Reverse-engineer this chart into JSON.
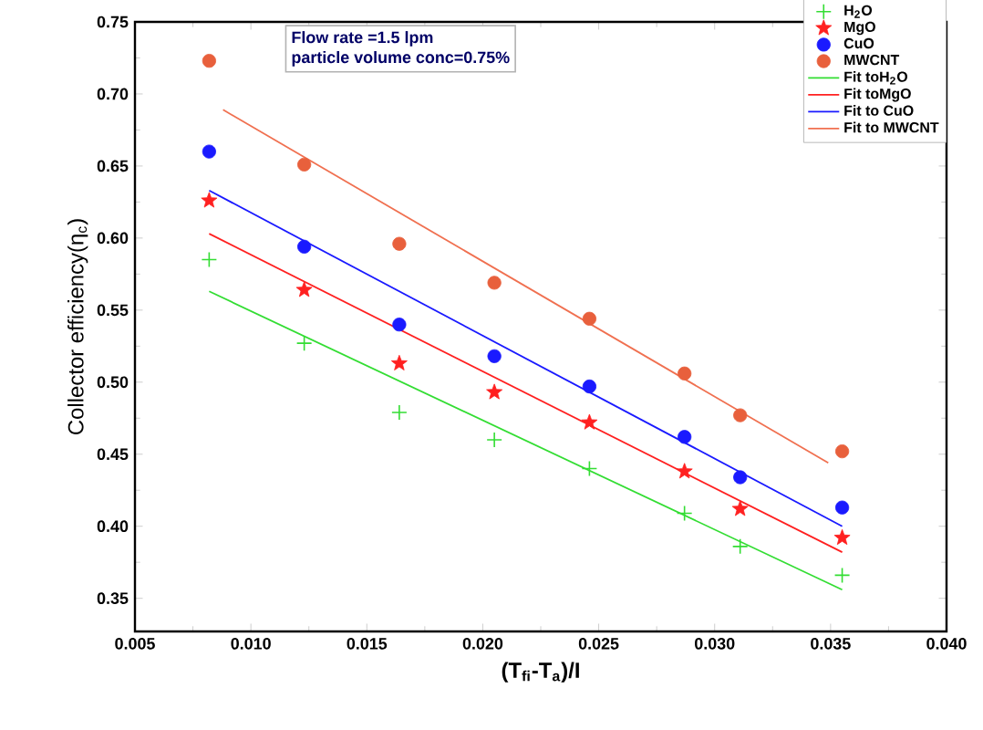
{
  "chart_data": {
    "type": "scatter",
    "xlabel": "(T$_{fi}$-T$_{a}$)/I",
    "ylabel": "Collector efficiency(η$_{c}$)",
    "annotations": [
      "Flow rate =1.5 lpm",
      "particle volume conc=0.75%"
    ],
    "x": [
      0.0082,
      0.0123,
      0.0164,
      0.0205,
      0.0246,
      0.0287,
      0.0311,
      0.0355
    ],
    "series": [
      {
        "name": "H$_{2}$O",
        "color": "#33dd33",
        "marker": "cross",
        "values": [
          0.585,
          0.527,
          0.479,
          0.46,
          0.44,
          0.409,
          0.386,
          0.366
        ]
      },
      {
        "name": "MgO",
        "color": "#ff2020",
        "marker": "star",
        "values": [
          0.626,
          0.564,
          0.513,
          0.493,
          0.472,
          0.438,
          0.412,
          0.392
        ]
      },
      {
        "name": "CuO",
        "color": "#1a1aff",
        "marker": "circle",
        "values": [
          0.66,
          0.594,
          0.54,
          0.518,
          0.497,
          0.462,
          0.434,
          0.413
        ]
      },
      {
        "name": "MWCNT",
        "color": "#e8603c",
        "marker": "circle",
        "values": [
          0.723,
          0.651,
          0.596,
          0.569,
          0.544,
          0.506,
          0.477,
          0.452
        ]
      },
      {
        "name": "Fit toH$_{2}$O",
        "type": "line",
        "color": "#33dd33",
        "marker": "none",
        "x": [
          0.0082,
          0.0355
        ],
        "values": [
          0.563,
          0.356
        ]
      },
      {
        "name": "Fit toMgO",
        "type": "line",
        "color": "#ff2020",
        "marker": "none",
        "x": [
          0.0082,
          0.0355
        ],
        "values": [
          0.603,
          0.382
        ]
      },
      {
        "name": "Fit to CuO",
        "type": "line",
        "color": "#1a1aff",
        "marker": "none",
        "x": [
          0.0082,
          0.0355
        ],
        "values": [
          0.633,
          0.4
        ]
      },
      {
        "name": "Fit to MWCNT",
        "type": "line",
        "color": "#f07050",
        "marker": "none",
        "x": [
          0.0088,
          0.0349
        ],
        "values": [
          0.689,
          0.444
        ]
      }
    ],
    "xlim": [
      0.005,
      0.04
    ],
    "ylim": [
      0.327,
      0.75
    ],
    "xticks": [
      {
        "value": 0.005,
        "label": "0.005"
      },
      {
        "value": 0.01,
        "label": "0.010"
      },
      {
        "value": 0.015,
        "label": "0.015"
      },
      {
        "value": 0.02,
        "label": "0.020"
      },
      {
        "value": 0.025,
        "label": "0.025"
      },
      {
        "value": 0.03,
        "label": "0.030"
      },
      {
        "value": 0.035,
        "label": "0.035"
      },
      {
        "value": 0.04,
        "label": "0.040"
      }
    ],
    "yticks": [
      {
        "value": 0.35,
        "label": "0.35"
      },
      {
        "value": 0.4,
        "label": "0.40"
      },
      {
        "value": 0.45,
        "label": "0.45"
      },
      {
        "value": 0.5,
        "label": "0.50"
      },
      {
        "value": 0.55,
        "label": "0.55"
      },
      {
        "value": 0.6,
        "label": "0.60"
      },
      {
        "value": 0.65,
        "label": "0.65"
      },
      {
        "value": 0.7,
        "label": "0.70"
      },
      {
        "value": 0.75,
        "label": "0.75"
      }
    ],
    "grid": false,
    "legend": "top right"
  }
}
